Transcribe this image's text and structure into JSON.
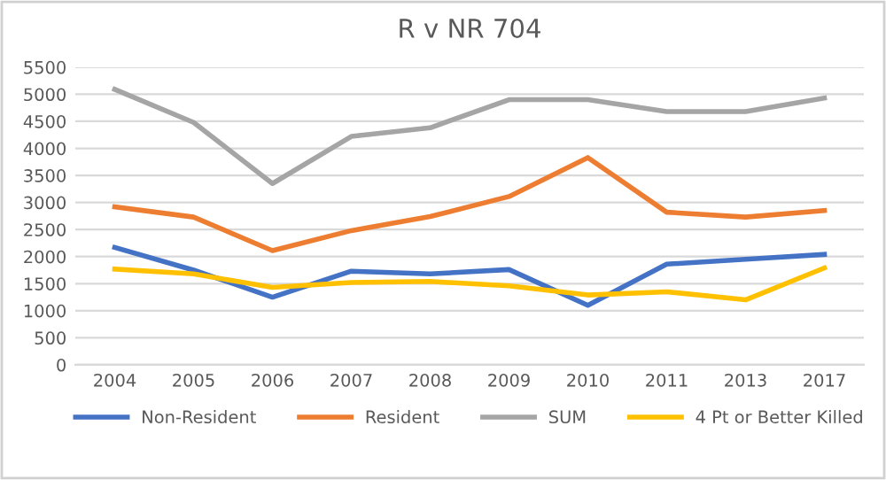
{
  "chart_data": {
    "type": "line",
    "title": "R v NR 704",
    "categories": [
      "2004",
      "2005",
      "2006",
      "2007",
      "2008",
      "2009",
      "2010",
      "2011",
      "2013",
      "2017"
    ],
    "series": [
      {
        "name": "Non-Resident",
        "color": "#4472c4",
        "values": [
          2170,
          1750,
          1250,
          1730,
          1680,
          1760,
          1100,
          1860,
          1950,
          2040
        ]
      },
      {
        "name": "Resident",
        "color": "#ed7d31",
        "values": [
          2920,
          2730,
          2110,
          2480,
          2740,
          3110,
          3830,
          2820,
          2730,
          2850
        ]
      },
      {
        "name": "SUM",
        "color": "#a5a5a5",
        "values": [
          5090,
          4480,
          3350,
          4220,
          4380,
          4900,
          4900,
          4680,
          4680,
          4930
        ]
      },
      {
        "name": "4 Pt or Better Killed",
        "color": "#ffc000",
        "values": [
          1770,
          1680,
          1430,
          1520,
          1540,
          1460,
          1290,
          1350,
          1200,
          1790
        ]
      }
    ],
    "ylim": [
      0,
      5500
    ],
    "yticks": [
      0,
      500,
      1000,
      1500,
      2000,
      2500,
      3000,
      3500,
      4000,
      4500,
      5000,
      5500
    ],
    "grid": "y",
    "legend": "bottom",
    "marker": "none",
    "line_style": "solid"
  }
}
